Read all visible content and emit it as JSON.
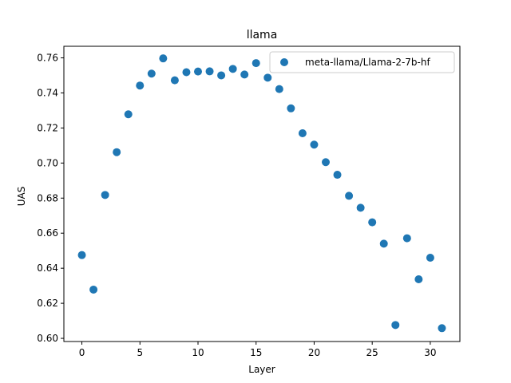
{
  "chart_data": {
    "type": "scatter",
    "title": "llama",
    "xlabel": "Layer",
    "ylabel": "UAS",
    "xlim": [
      -1.55,
      32.55
    ],
    "ylim": [
      0.5982,
      0.7666
    ],
    "xticks": [
      0,
      5,
      10,
      15,
      20,
      25,
      30
    ],
    "xtick_labels": [
      "0",
      "5",
      "10",
      "15",
      "20",
      "25",
      "30"
    ],
    "yticks": [
      0.6,
      0.62,
      0.64,
      0.66,
      0.68,
      0.7,
      0.72,
      0.74,
      0.76
    ],
    "ytick_labels": [
      "0.60",
      "0.62",
      "0.64",
      "0.66",
      "0.68",
      "0.70",
      "0.72",
      "0.74",
      "0.76"
    ],
    "grid": false,
    "legend_position": "top-right",
    "series": [
      {
        "name": "meta-llama/Llama-2-7b-hf",
        "color": "#1f77b4",
        "x": [
          0,
          1,
          2,
          3,
          4,
          5,
          6,
          7,
          8,
          9,
          10,
          11,
          12,
          13,
          14,
          15,
          16,
          17,
          18,
          19,
          20,
          21,
          22,
          23,
          24,
          25,
          26,
          27,
          28,
          29,
          30,
          31
        ],
        "y": [
          0.6475,
          0.6278,
          0.6818,
          0.7062,
          0.7278,
          0.7442,
          0.751,
          0.7597,
          0.7472,
          0.7518,
          0.7522,
          0.7523,
          0.75,
          0.7537,
          0.7505,
          0.757,
          0.7487,
          0.7422,
          0.7312,
          0.717,
          0.7105,
          0.7005,
          0.6933,
          0.6813,
          0.6745,
          0.6662,
          0.654,
          0.6076,
          0.6571,
          0.6337,
          0.646,
          0.6058
        ]
      }
    ]
  }
}
